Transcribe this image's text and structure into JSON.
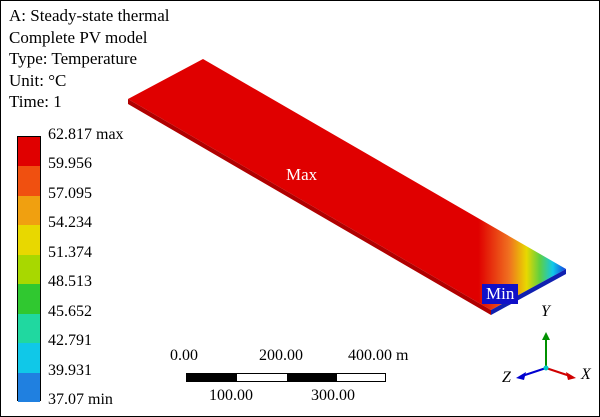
{
  "info": {
    "analysis": "A: Steady-state thermal",
    "model": "Complete PV model",
    "type": "Type: Temperature",
    "unit": "Unit: °C",
    "time": "Time: 1"
  },
  "legend": {
    "ticks": [
      "62.817 max",
      "59.956",
      "57.095",
      "54.234",
      "51.374",
      "48.513",
      "45.652",
      "42.791",
      "39.931",
      "37.07 min"
    ],
    "colors": [
      "#e00000",
      "#f05010",
      "#f0a010",
      "#e8d800",
      "#a8d800",
      "#30c830",
      "#20d8a0",
      "#10c8e8",
      "#2080e0",
      "#0000d8"
    ]
  },
  "probes": {
    "max_label": "Max",
    "min_label": "Min",
    "max_color": "#e00000",
    "min_color": "#1010c8"
  },
  "scale_bar": {
    "top_labels": [
      "0.00",
      "200.00",
      "400.00 m"
    ],
    "bottom_labels": [
      "100.00",
      "300.00"
    ]
  },
  "triad": {
    "x": "X",
    "y": "Y",
    "z": "Z",
    "x_color": "#d00000",
    "y_color": "#009000",
    "z_color": "#0000d0"
  }
}
